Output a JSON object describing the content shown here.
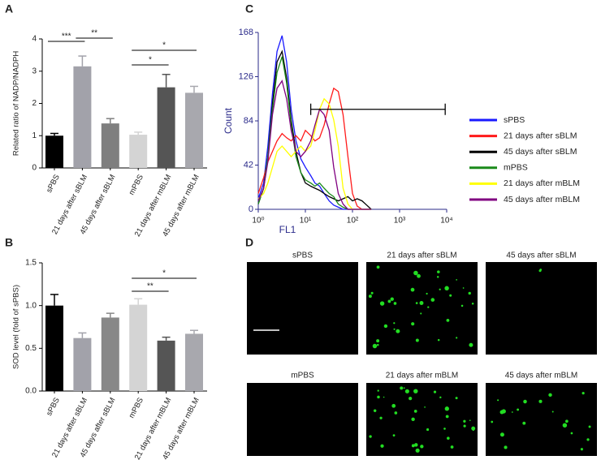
{
  "chart_data": [
    {
      "type": "bar",
      "panel": "A",
      "ylabel": "Related ratio of NADP/NADPH",
      "categories": [
        "sPBS",
        "21 days after sBLM",
        "45 days after sBLM",
        "mPBS",
        "21 days after mBLM",
        "45 days after mBLM"
      ],
      "values": [
        1.0,
        3.15,
        1.38,
        1.03,
        2.5,
        2.33
      ],
      "errors": [
        0.07,
        0.32,
        0.15,
        0.08,
        0.4,
        0.2
      ],
      "colors": [
        "#000000",
        "#a2a2aa",
        "#7f7f7f",
        "#d4d4d4",
        "#555555",
        "#a8a8ae"
      ],
      "ylim": [
        0,
        4
      ],
      "yticks": [
        0,
        1,
        2,
        3,
        4
      ],
      "annotations": [
        "***",
        "**",
        "*",
        "*"
      ]
    },
    {
      "type": "bar",
      "panel": "B",
      "ylabel": "SOD level (fold of sPBS)",
      "categories": [
        "sPBS",
        "21 days after sBLM",
        "45 days after sBLM",
        "mPBS",
        "21 days after mBLM",
        "45 days after mBLM"
      ],
      "values": [
        1.0,
        0.62,
        0.86,
        1.01,
        0.59,
        0.67
      ],
      "errors": [
        0.13,
        0.06,
        0.05,
        0.07,
        0.04,
        0.04
      ],
      "colors": [
        "#000000",
        "#a2a2aa",
        "#888888",
        "#d4d4d4",
        "#555555",
        "#a8a8ae"
      ],
      "ylim": [
        0,
        1.5
      ],
      "yticks": [
        {
          "value": 0,
          "label": "0.0"
        },
        {
          "value": 0.5,
          "label": "0.5"
        },
        {
          "value": 1,
          "label": "1.0"
        },
        {
          "value": 1.5,
          "label": "1.5"
        }
      ],
      "annotations": [
        "**",
        "*"
      ]
    },
    {
      "type": "line",
      "panel": "C",
      "xlabel": "FL1",
      "ylabel": "Count",
      "xscale": "log",
      "x": [
        1,
        1.3,
        1.6,
        2,
        2.5,
        3.2,
        4,
        5,
        6.3,
        8,
        10,
        13,
        16,
        20,
        25,
        32,
        40,
        50,
        63,
        80,
        100,
        126,
        160,
        200,
        250
      ],
      "series": [
        {
          "name": "sPBS",
          "color": "#1a1aff",
          "values": [
            10,
            25,
            60,
            110,
            150,
            165,
            140,
            95,
            65,
            48,
            40,
            32,
            25,
            22,
            15,
            8,
            4,
            2,
            0,
            0,
            0,
            0,
            0,
            0,
            0
          ]
        },
        {
          "name": "21 days after sBLM",
          "color": "#ff1a1a",
          "values": [
            15,
            30,
            45,
            55,
            65,
            72,
            68,
            65,
            70,
            65,
            75,
            70,
            65,
            68,
            80,
            100,
            115,
            112,
            90,
            50,
            15,
            3,
            0,
            0,
            0
          ]
        },
        {
          "name": "45 days after sBLM",
          "color": "#000000",
          "values": [
            5,
            20,
            50,
            100,
            140,
            150,
            125,
            85,
            55,
            35,
            25,
            22,
            20,
            18,
            15,
            12,
            10,
            8,
            10,
            12,
            8,
            10,
            8,
            4,
            0
          ]
        },
        {
          "name": "mPBS",
          "color": "#1a8a1a",
          "values": [
            5,
            20,
            50,
            95,
            130,
            145,
            120,
            80,
            50,
            35,
            28,
            25,
            22,
            25,
            20,
            15,
            12,
            5,
            2,
            0,
            0,
            0,
            0,
            0,
            0
          ]
        },
        {
          "name": "21 days after mBLM",
          "color": "#ffff00",
          "values": [
            10,
            15,
            25,
            40,
            55,
            60,
            55,
            50,
            55,
            60,
            55,
            60,
            75,
            95,
            105,
            100,
            85,
            60,
            20,
            5,
            0,
            0,
            0,
            0,
            0
          ]
        },
        {
          "name": "45 days after mBLM",
          "color": "#800080",
          "values": [
            8,
            20,
            45,
            90,
            115,
            122,
            105,
            75,
            55,
            50,
            55,
            65,
            80,
            95,
            90,
            75,
            40,
            15,
            5,
            0,
            0,
            0,
            0,
            0,
            0
          ]
        }
      ],
      "xlim": [
        1,
        10000
      ],
      "xticks": [
        {
          "value": 1,
          "label": "10⁰"
        },
        {
          "value": 10,
          "label": "10¹"
        },
        {
          "value": 100,
          "label": "10²"
        },
        {
          "value": 1000,
          "label": "10³"
        },
        {
          "value": 10000,
          "label": "10⁴"
        }
      ],
      "ylim": [
        0,
        168
      ],
      "yticks": [
        0,
        42,
        84,
        126,
        168
      ],
      "gate": {
        "x": [
          13,
          9300
        ],
        "y": 95
      }
    }
  ],
  "micrographs": {
    "panel": "D",
    "labels": [
      "sPBS",
      "21 days after sBLM",
      "45 days after sBLM",
      "mPBS",
      "21 days after mBLM",
      "45 days after mBLM"
    ]
  }
}
